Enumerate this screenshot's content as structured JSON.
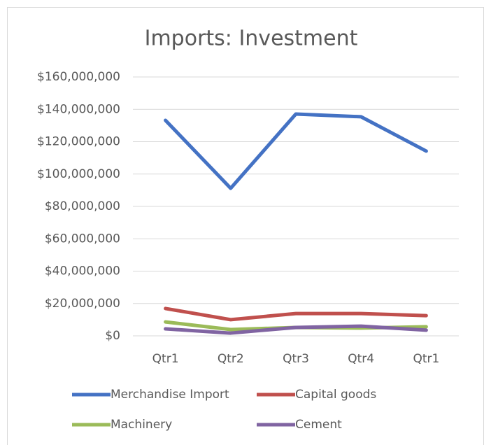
{
  "chart_data": {
    "type": "line",
    "title": "Imports: Investment",
    "categories": [
      "Qtr1",
      "Qtr2",
      "Qtr3",
      "Qtr4",
      "Qtr1"
    ],
    "series": [
      {
        "name": "Merchandise Import",
        "color": "#4472c4",
        "values": [
          133200000,
          91200000,
          137100000,
          135400000,
          114200000
        ]
      },
      {
        "name": "Capital goods",
        "color": "#c0504d",
        "values": [
          16900000,
          10000000,
          13800000,
          13800000,
          12500000
        ]
      },
      {
        "name": "Machinery",
        "color": "#9bbb59",
        "values": [
          8600000,
          3900000,
          5200000,
          4800000,
          5600000
        ]
      },
      {
        "name": "Cement",
        "color": "#8064a2",
        "values": [
          4300000,
          1700000,
          5200000,
          6000000,
          3500000
        ]
      }
    ],
    "ylim": [
      0,
      160000000
    ],
    "yticks": [
      {
        "value": 0,
        "label": "$0"
      },
      {
        "value": 20000000,
        "label": "$20,000,000"
      },
      {
        "value": 40000000,
        "label": "$40,000,000"
      },
      {
        "value": 60000000,
        "label": "$60,000,000"
      },
      {
        "value": 80000000,
        "label": "$80,000,000"
      },
      {
        "value": 100000000,
        "label": "$100,000,000"
      },
      {
        "value": 120000000,
        "label": "$120,000,000"
      },
      {
        "value": 140000000,
        "label": "$140,000,000"
      },
      {
        "value": 160000000,
        "label": "$160,000,000"
      }
    ],
    "grid": true,
    "legend": "bottom"
  }
}
